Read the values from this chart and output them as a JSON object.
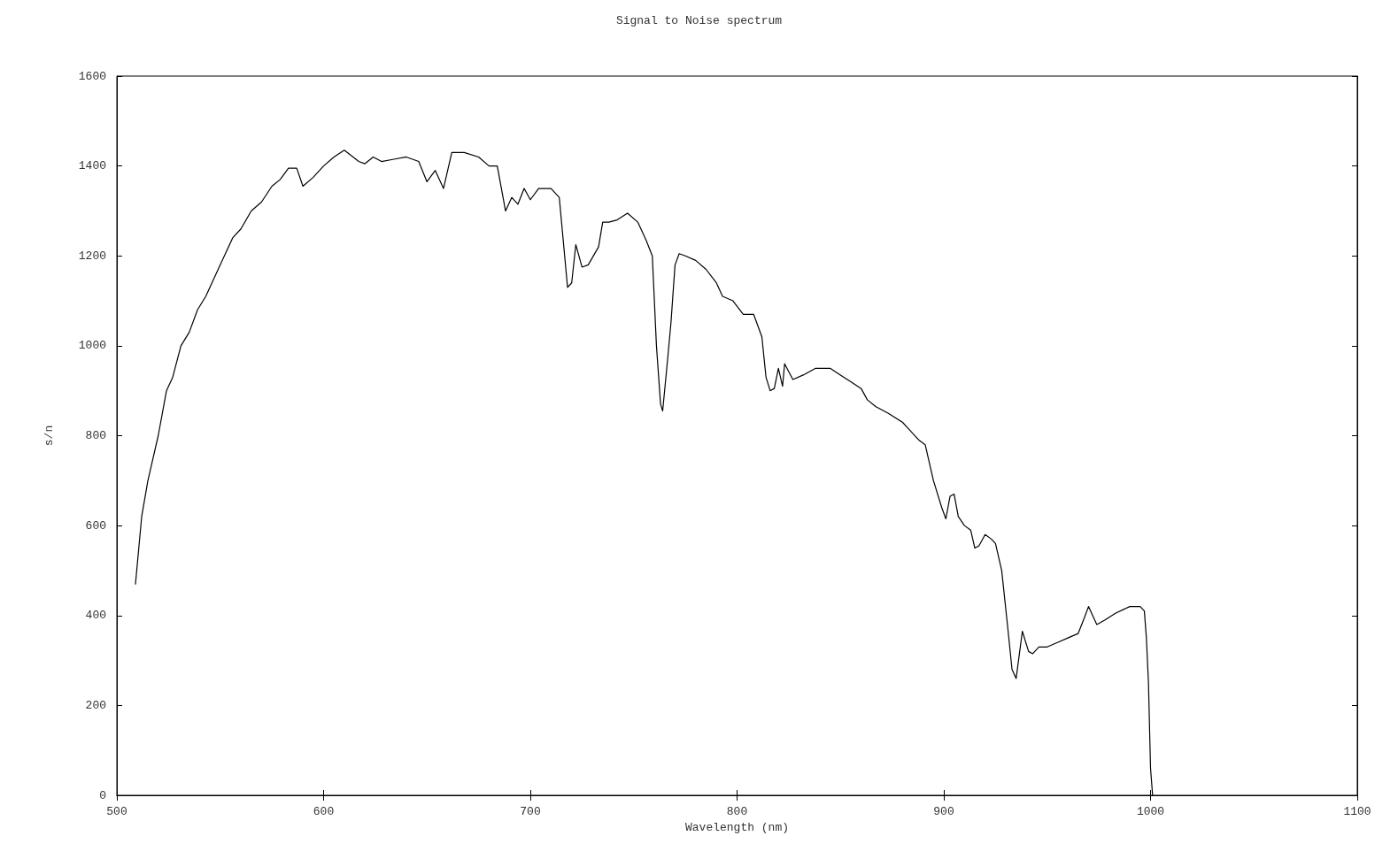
{
  "chart_data": {
    "type": "line",
    "title": "Signal to Noise spectrum",
    "xlabel": "Wavelength (nm)",
    "ylabel": "s/n",
    "xlim": [
      500,
      1100
    ],
    "xticks": [
      500,
      600,
      700,
      800,
      900,
      1000,
      1100
    ],
    "ylim": [
      0,
      1600
    ],
    "yticks": [
      0,
      200,
      400,
      600,
      800,
      1000,
      1200,
      1400,
      1600
    ],
    "grid": false,
    "marker": "none",
    "line_style": "solid",
    "series": [
      {
        "color": "#000000",
        "x": [
          509,
          512,
          515,
          520,
          524,
          527,
          531,
          535,
          539,
          543,
          548,
          556,
          560,
          565,
          570,
          575,
          579,
          583,
          587,
          590,
          595,
          600,
          605,
          610,
          617,
          620,
          624,
          628,
          634,
          640,
          646,
          650,
          654,
          658,
          662,
          668,
          675,
          680,
          684,
          688,
          691,
          694,
          697,
          700,
          704,
          710,
          714,
          718,
          720,
          722,
          725,
          728,
          733,
          735,
          738,
          742,
          747,
          752,
          756,
          759,
          761,
          763,
          764,
          766,
          768,
          770,
          772,
          775,
          780,
          785,
          790,
          793,
          798,
          803,
          808,
          812,
          814,
          816,
          818,
          820,
          822,
          823,
          827,
          832,
          838,
          845,
          850,
          855,
          860,
          863,
          867,
          873,
          880,
          883,
          888,
          891,
          895,
          899,
          901,
          903,
          905,
          907,
          910,
          913,
          915,
          917,
          920,
          923,
          925,
          928,
          931,
          933,
          935,
          937,
          938,
          941,
          943,
          946,
          950,
          955,
          960,
          965,
          968,
          970,
          974,
          978,
          983,
          990,
          995,
          997,
          998,
          999,
          1000,
          1001
        ],
        "values": [
          470,
          620,
          700,
          800,
          900,
          930,
          1000,
          1030,
          1080,
          1110,
          1160,
          1240,
          1260,
          1300,
          1320,
          1355,
          1370,
          1395,
          1395,
          1355,
          1375,
          1400,
          1420,
          1435,
          1410,
          1405,
          1420,
          1410,
          1415,
          1420,
          1410,
          1365,
          1390,
          1350,
          1430,
          1430,
          1420,
          1400,
          1400,
          1300,
          1330,
          1315,
          1350,
          1325,
          1350,
          1350,
          1330,
          1130,
          1140,
          1225,
          1175,
          1180,
          1220,
          1275,
          1275,
          1280,
          1295,
          1275,
          1235,
          1200,
          1000,
          870,
          855,
          950,
          1050,
          1180,
          1205,
          1200,
          1190,
          1170,
          1140,
          1110,
          1100,
          1070,
          1070,
          1020,
          930,
          900,
          905,
          950,
          910,
          960,
          925,
          935,
          950,
          950,
          935,
          920,
          905,
          880,
          865,
          850,
          830,
          815,
          790,
          780,
          700,
          640,
          615,
          665,
          670,
          620,
          600,
          590,
          550,
          555,
          580,
          570,
          560,
          500,
          370,
          280,
          260,
          330,
          365,
          320,
          315,
          330,
          330,
          340,
          350,
          360,
          395,
          420,
          380,
          390,
          405,
          420,
          420,
          410,
          350,
          250,
          60,
          0
        ]
      }
    ]
  }
}
